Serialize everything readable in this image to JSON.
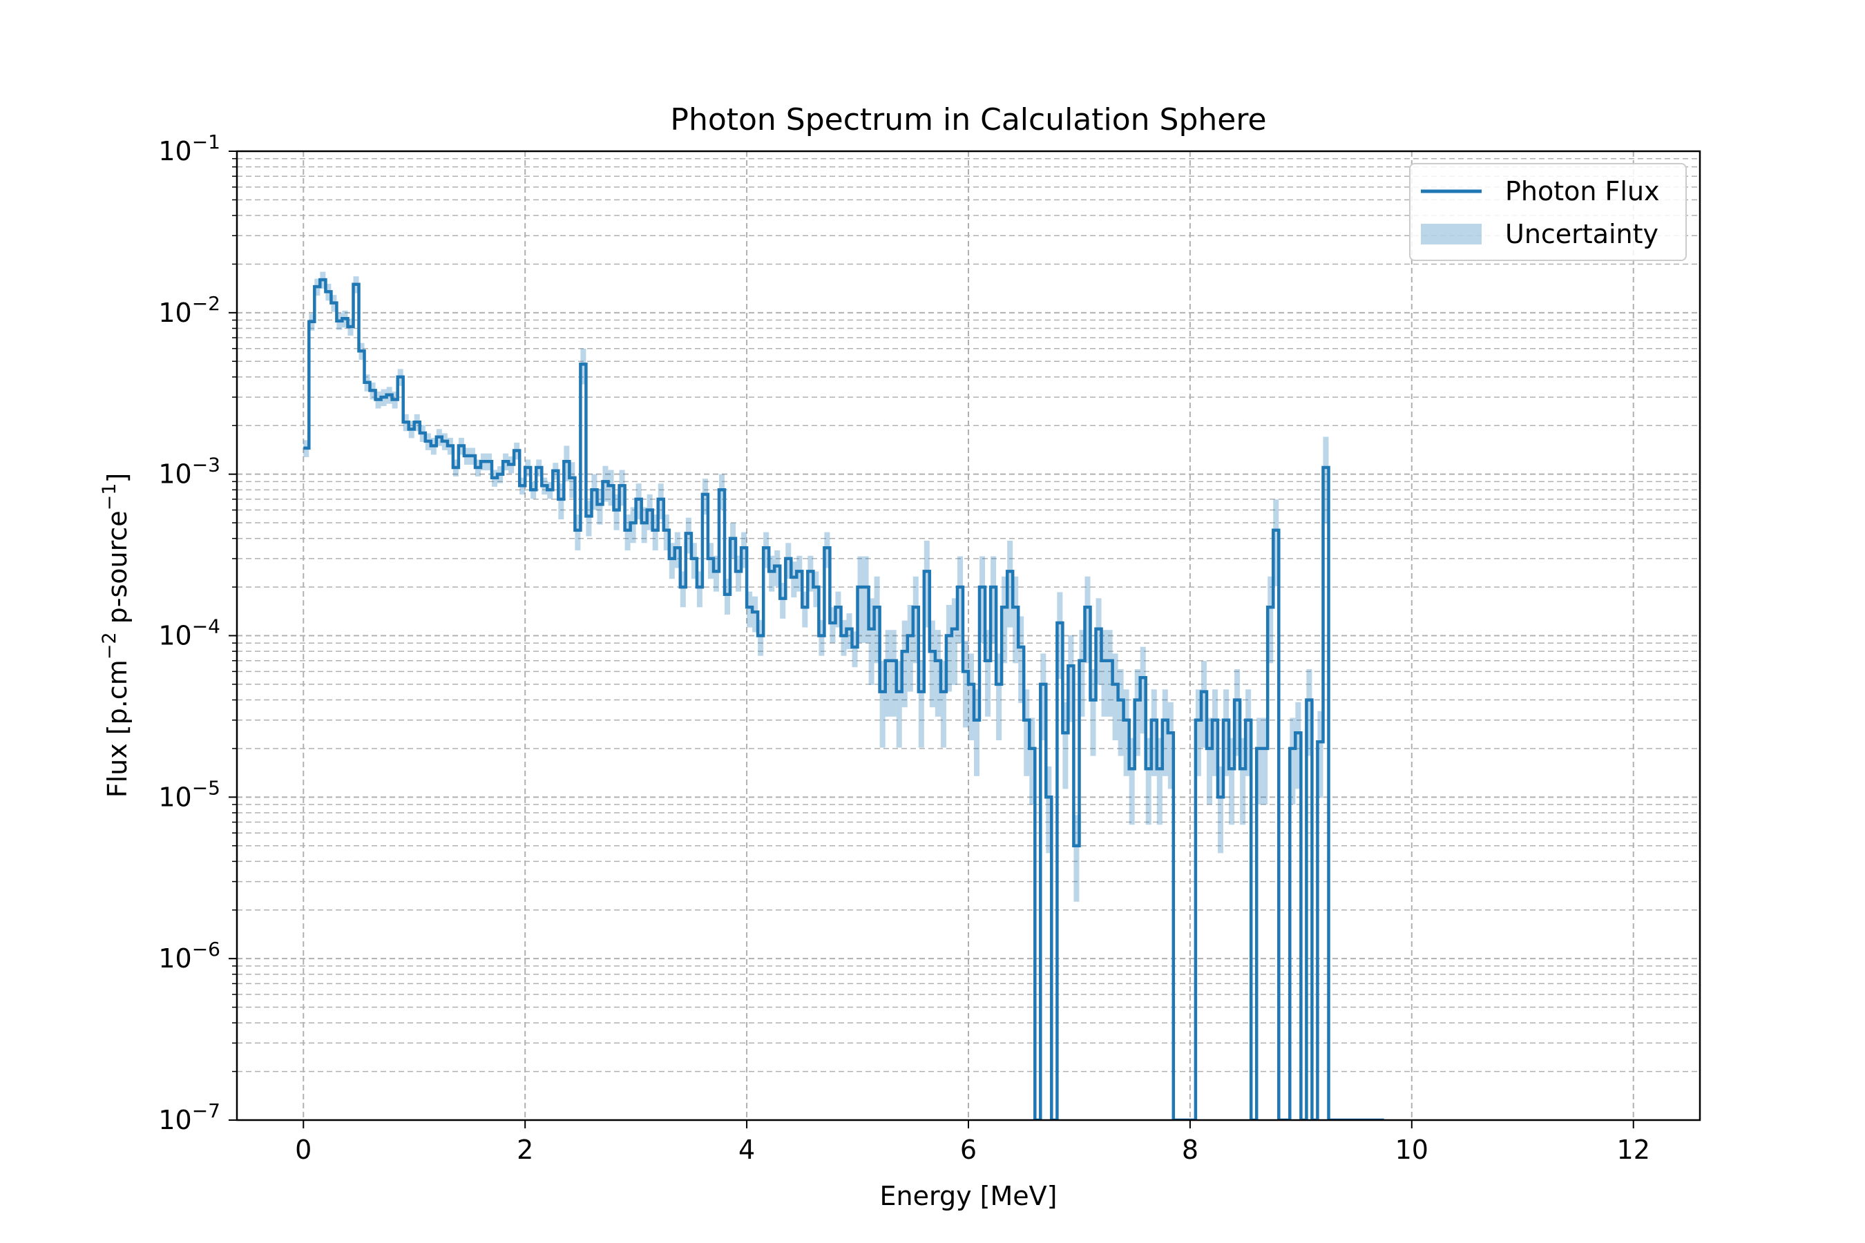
{
  "chart_data": {
    "type": "line",
    "title": "Photon Spectrum in Calculation Sphere",
    "xlabel": "Energy [MeV]",
    "ylabel_main": "Flux [p.cm",
    "ylabel_exp1": "−2",
    "ylabel_mid": " p-source",
    "ylabel_exp2": "−1",
    "ylabel_end": "]",
    "xlim": [
      -0.6,
      12.6
    ],
    "ylim": [
      1e-07,
      0.1
    ],
    "y_scale": "log",
    "x_ticks": [
      0,
      2,
      4,
      6,
      8,
      10,
      12
    ],
    "x_tick_labels": [
      "0",
      "2",
      "4",
      "6",
      "8",
      "10",
      "12"
    ],
    "y_ticks": [
      1e-07,
      1e-06,
      1e-05,
      0.0001,
      0.001,
      0.01,
      0.1
    ],
    "y_tick_base": "10",
    "y_tick_exponents": [
      "−7",
      "−6",
      "−5",
      "−4",
      "−3",
      "−2",
      "−1"
    ],
    "grid": true,
    "legend_position": "top-right",
    "colors": {
      "line": "#1f77b4",
      "band": "#1f77b4",
      "grid": "#b0b0b0",
      "axes": "#000000"
    },
    "series": [
      {
        "name": "Photon Flux",
        "style": "step"
      },
      {
        "name": "Uncertainty",
        "style": "band"
      }
    ],
    "bin_edges": [
      0.0,
      0.05,
      0.1,
      0.15,
      0.2,
      0.25,
      0.3,
      0.35,
      0.4,
      0.45,
      0.5,
      0.55,
      0.6,
      0.65,
      0.7,
      0.75,
      0.8,
      0.85,
      0.9,
      0.95,
      1.0,
      1.05,
      1.1,
      1.15,
      1.2,
      1.25,
      1.3,
      1.35,
      1.4,
      1.45,
      1.5,
      1.55,
      1.6,
      1.65,
      1.7,
      1.75,
      1.8,
      1.85,
      1.9,
      1.95,
      2.0,
      2.05,
      2.1,
      2.15,
      2.2,
      2.25,
      2.3,
      2.35,
      2.4,
      2.45,
      2.5,
      2.55,
      2.6,
      2.65,
      2.7,
      2.75,
      2.8,
      2.85,
      2.9,
      2.95,
      3.0,
      3.05,
      3.1,
      3.15,
      3.2,
      3.25,
      3.3,
      3.35,
      3.4,
      3.45,
      3.5,
      3.55,
      3.6,
      3.65,
      3.7,
      3.75,
      3.8,
      3.85,
      3.9,
      3.95,
      4.0,
      4.05,
      4.1,
      4.15,
      4.2,
      4.25,
      4.3,
      4.35,
      4.4,
      4.45,
      4.5,
      4.55,
      4.6,
      4.65,
      4.7,
      4.75,
      4.8,
      4.85,
      4.9,
      4.95,
      5.0,
      5.05,
      5.1,
      5.15,
      5.2,
      5.25,
      5.3,
      5.35,
      5.4,
      5.45,
      5.5,
      5.55,
      5.6,
      5.65,
      5.7,
      5.75,
      5.8,
      5.85,
      5.9,
      5.95,
      6.0,
      6.05,
      6.1,
      6.15,
      6.2,
      6.25,
      6.3,
      6.35,
      6.4,
      6.45,
      6.5,
      6.55,
      6.6,
      6.65,
      6.7,
      6.75,
      6.8,
      6.85,
      6.9,
      6.95,
      7.0,
      7.05,
      7.1,
      7.15,
      7.2,
      7.25,
      7.3,
      7.35,
      7.4,
      7.45,
      7.5,
      7.55,
      7.6,
      7.65,
      7.7,
      7.75,
      7.8,
      7.85,
      7.9,
      7.95,
      8.0,
      8.05,
      8.1,
      8.15,
      8.2,
      8.25,
      8.3,
      8.35,
      8.4,
      8.45,
      8.5,
      8.55,
      8.6,
      8.65,
      8.7,
      8.75,
      8.8,
      8.85,
      8.9,
      8.95,
      9.0,
      9.05,
      9.1,
      9.15,
      9.2,
      9.25,
      9.3,
      9.35,
      9.4,
      9.45,
      9.5,
      9.55,
      9.6,
      9.65,
      9.7,
      9.75,
      9.8,
      9.85,
      9.9,
      9.95,
      10.0,
      10.05
    ],
    "flux": [
      0.00145,
      0.0088,
      0.0145,
      0.016,
      0.0135,
      0.0115,
      0.0089,
      0.0092,
      0.0082,
      0.015,
      0.0058,
      0.0037,
      0.0033,
      0.0029,
      0.003,
      0.0031,
      0.0029,
      0.004,
      0.0021,
      0.0019,
      0.0021,
      0.0018,
      0.0016,
      0.0015,
      0.0017,
      0.0016,
      0.0015,
      0.0011,
      0.0015,
      0.0013,
      0.0013,
      0.0011,
      0.0012,
      0.0012,
      0.00095,
      0.001,
      0.0012,
      0.00115,
      0.0014,
      0.00085,
      0.0011,
      0.0008,
      0.0011,
      0.00085,
      0.0008,
      0.00105,
      0.0007,
      0.0012,
      0.00095,
      0.00045,
      0.0048,
      0.00055,
      0.0008,
      0.00065,
      0.0009,
      0.00085,
      0.0006,
      0.00085,
      0.00045,
      0.0005,
      0.0007,
      0.0005,
      0.0006,
      0.00045,
      0.0007,
      0.00045,
      0.0003,
      0.00035,
      0.0002,
      0.00043,
      0.0003,
      0.0002,
      0.00075,
      0.0003,
      0.00025,
      0.0008,
      0.00018,
      0.0004,
      0.00025,
      0.00035,
      0.00015,
      0.00014,
      0.0001,
      0.00035,
      0.00025,
      0.00027,
      0.00017,
      0.0003,
      0.00023,
      0.00025,
      0.00015,
      0.00025,
      0.0002,
      0.0001,
      0.00035,
      0.00012,
      0.00015,
      0.0001,
      0.00011,
      8.5e-05,
      0.0002,
      0.0002,
      0.00011,
      0.00015,
      4.5e-05,
      7e-05,
      7e-05,
      4.5e-05,
      8e-05,
      0.0001,
      0.00015,
      4.5e-05,
      0.00025,
      8e-05,
      7e-05,
      4.5e-05,
      0.0001,
      0.00011,
      0.0002,
      6e-05,
      5e-05,
      3e-05,
      0.0002,
      7e-05,
      0.0002,
      5e-05,
      0.00015,
      0.00025,
      0.00015,
      8.5e-05,
      3e-05,
      2e-05,
      1e-07,
      5e-05,
      1e-05,
      1e-07,
      0.00012,
      2.5e-05,
      6.5e-05,
      5e-06,
      7e-05,
      0.00015,
      4e-05,
      0.00011,
      7e-05,
      7e-05,
      5e-05,
      4e-05,
      3e-05,
      1.5e-05,
      4e-05,
      5.5e-05,
      1.5e-05,
      3e-05,
      1.5e-05,
      3e-05,
      2.5e-05,
      1e-07,
      1e-07,
      1e-07,
      1e-07,
      3e-05,
      4.5e-05,
      2e-05,
      3e-05,
      1e-05,
      3e-05,
      1.5e-05,
      4e-05,
      1.5e-05,
      3e-05,
      1e-07,
      2e-05,
      2e-05,
      0.00015,
      0.00045,
      1e-07,
      1e-07,
      2e-05,
      2.5e-05,
      1e-07,
      4e-05,
      1e-07,
      2.2e-05,
      0.0011,
      1e-07,
      1e-07,
      1e-07,
      1e-07,
      1e-07,
      1e-07,
      1e-07,
      1e-07,
      1e-07,
      1e-07
    ]
  },
  "legend": {
    "photon_flux_label": "Photon Flux",
    "uncertainty_label": "Uncertainty"
  }
}
